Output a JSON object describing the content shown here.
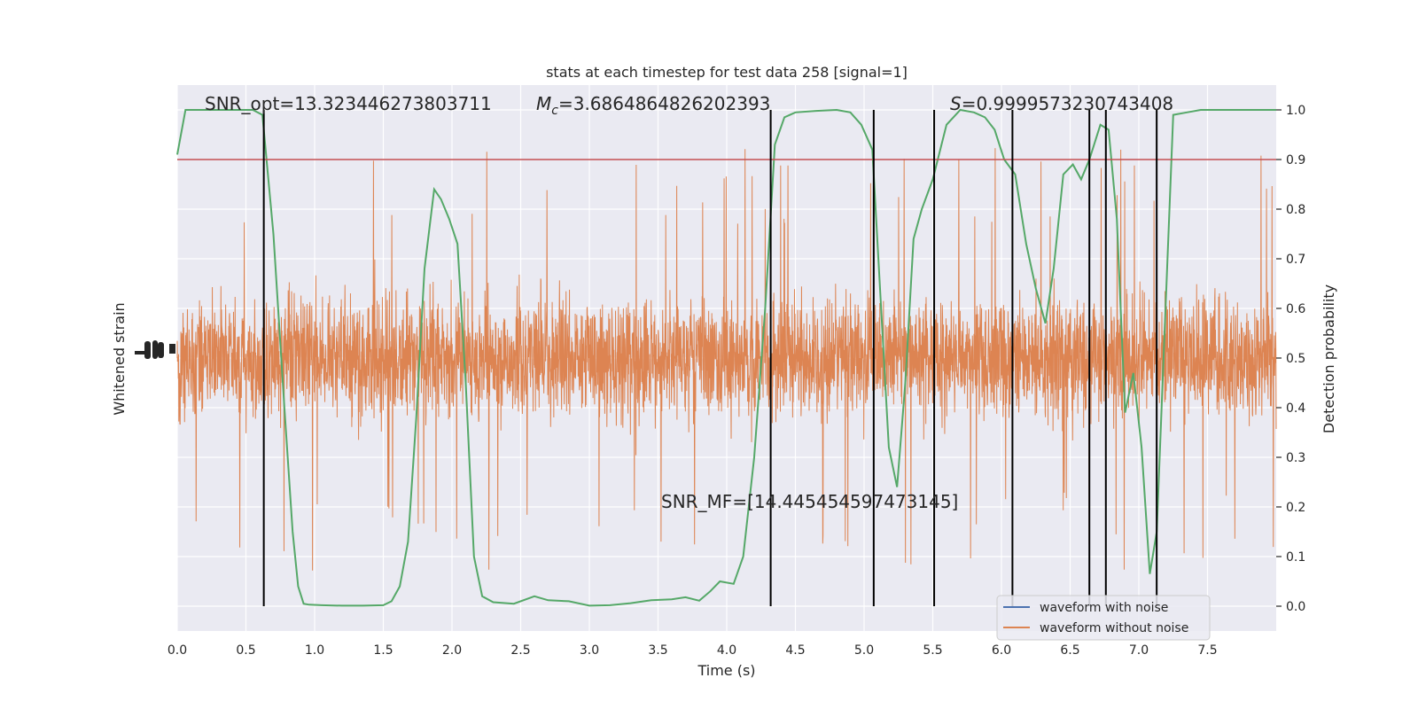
{
  "chart_data": {
    "type": "line",
    "title": "stats at each timestep for test data 258 [signal=1]",
    "xlabel": "Time (s)",
    "ylabel_left": "Whitened strain",
    "ylabel_right": "Detection probability",
    "xlim": [
      0.0,
      8.0
    ],
    "ylim_right": [
      -0.05,
      1.05
    ],
    "x_ticks": [
      "0.0",
      "0.5",
      "1.0",
      "1.5",
      "2.0",
      "2.5",
      "3.0",
      "3.5",
      "4.0",
      "4.5",
      "5.0",
      "5.5",
      "6.0",
      "6.5",
      "7.0",
      "7.5"
    ],
    "y_ticks_right": [
      "0.0",
      "0.1",
      "0.2",
      "0.3",
      "0.4",
      "0.5",
      "0.6",
      "0.7",
      "0.8",
      "0.9",
      "1.0"
    ],
    "grid": true,
    "annotations": {
      "snr_opt": "SNR_opt=13.323446273803711",
      "mc_symbol": "M",
      "mc_sub": "c",
      "mc_value": "=3.6864864826202393",
      "s_symbol": "S",
      "s_value": "=0.9999573230743408",
      "snr_mf": "SNR_MF=[14.445454597473145]"
    },
    "threshold": 0.9,
    "vertical_lines_x": [
      0.63,
      4.32,
      5.07,
      5.51,
      6.08,
      6.64,
      6.76,
      7.13
    ],
    "detection_probability": {
      "name": "detection probability",
      "color": "#55a868",
      "x": [
        0.0,
        0.06,
        0.2,
        0.4,
        0.55,
        0.62,
        0.7,
        0.78,
        0.84,
        0.88,
        0.92,
        0.96,
        1.05,
        1.2,
        1.35,
        1.5,
        1.56,
        1.62,
        1.68,
        1.74,
        1.8,
        1.87,
        1.92,
        1.98,
        2.04,
        2.1,
        2.16,
        2.22,
        2.3,
        2.45,
        2.6,
        2.7,
        2.85,
        3.0,
        3.15,
        3.3,
        3.45,
        3.6,
        3.7,
        3.8,
        3.88,
        3.95,
        4.05,
        4.12,
        4.2,
        4.28,
        4.35,
        4.42,
        4.5,
        4.65,
        4.8,
        4.9,
        4.98,
        5.06,
        5.1,
        5.18,
        5.24,
        5.3,
        5.36,
        5.42,
        5.5,
        5.6,
        5.7,
        5.8,
        5.88,
        5.95,
        6.02,
        6.1,
        6.18,
        6.25,
        6.32,
        6.38,
        6.45,
        6.52,
        6.58,
        6.64,
        6.72,
        6.78,
        6.84,
        6.9,
        6.96,
        7.02,
        7.08,
        7.13,
        7.18,
        7.25,
        7.35,
        7.45,
        7.6,
        8.0
      ],
      "values": [
        0.91,
        1.0,
        1.0,
        1.0,
        1.0,
        0.99,
        0.75,
        0.4,
        0.15,
        0.04,
        0.005,
        0.003,
        0.002,
        0.001,
        0.001,
        0.002,
        0.01,
        0.04,
        0.13,
        0.38,
        0.68,
        0.84,
        0.82,
        0.78,
        0.73,
        0.45,
        0.1,
        0.02,
        0.008,
        0.005,
        0.02,
        0.012,
        0.01,
        0.001,
        0.002,
        0.006,
        0.012,
        0.014,
        0.018,
        0.011,
        0.03,
        0.05,
        0.045,
        0.1,
        0.3,
        0.6,
        0.93,
        0.985,
        0.995,
        0.998,
        1.0,
        0.995,
        0.97,
        0.92,
        0.72,
        0.32,
        0.24,
        0.45,
        0.74,
        0.8,
        0.86,
        0.97,
        1.0,
        0.995,
        0.985,
        0.96,
        0.9,
        0.87,
        0.73,
        0.64,
        0.57,
        0.68,
        0.87,
        0.89,
        0.86,
        0.9,
        0.97,
        0.96,
        0.78,
        0.39,
        0.47,
        0.32,
        0.065,
        0.15,
        0.5,
        0.99,
        0.995,
        1.0,
        1.0,
        1.0
      ]
    },
    "legend": {
      "placement": "lower-right",
      "entries": [
        {
          "name": "waveform with noise",
          "color": "#4c72b0"
        },
        {
          "name": "waveform without noise",
          "color": "#dd8452"
        }
      ]
    },
    "colors": {
      "background": "#eaeaf2",
      "grid": "#ffffff",
      "strain": "#dd8452",
      "threshold": "#c44e52",
      "vlines": "#000000"
    }
  }
}
